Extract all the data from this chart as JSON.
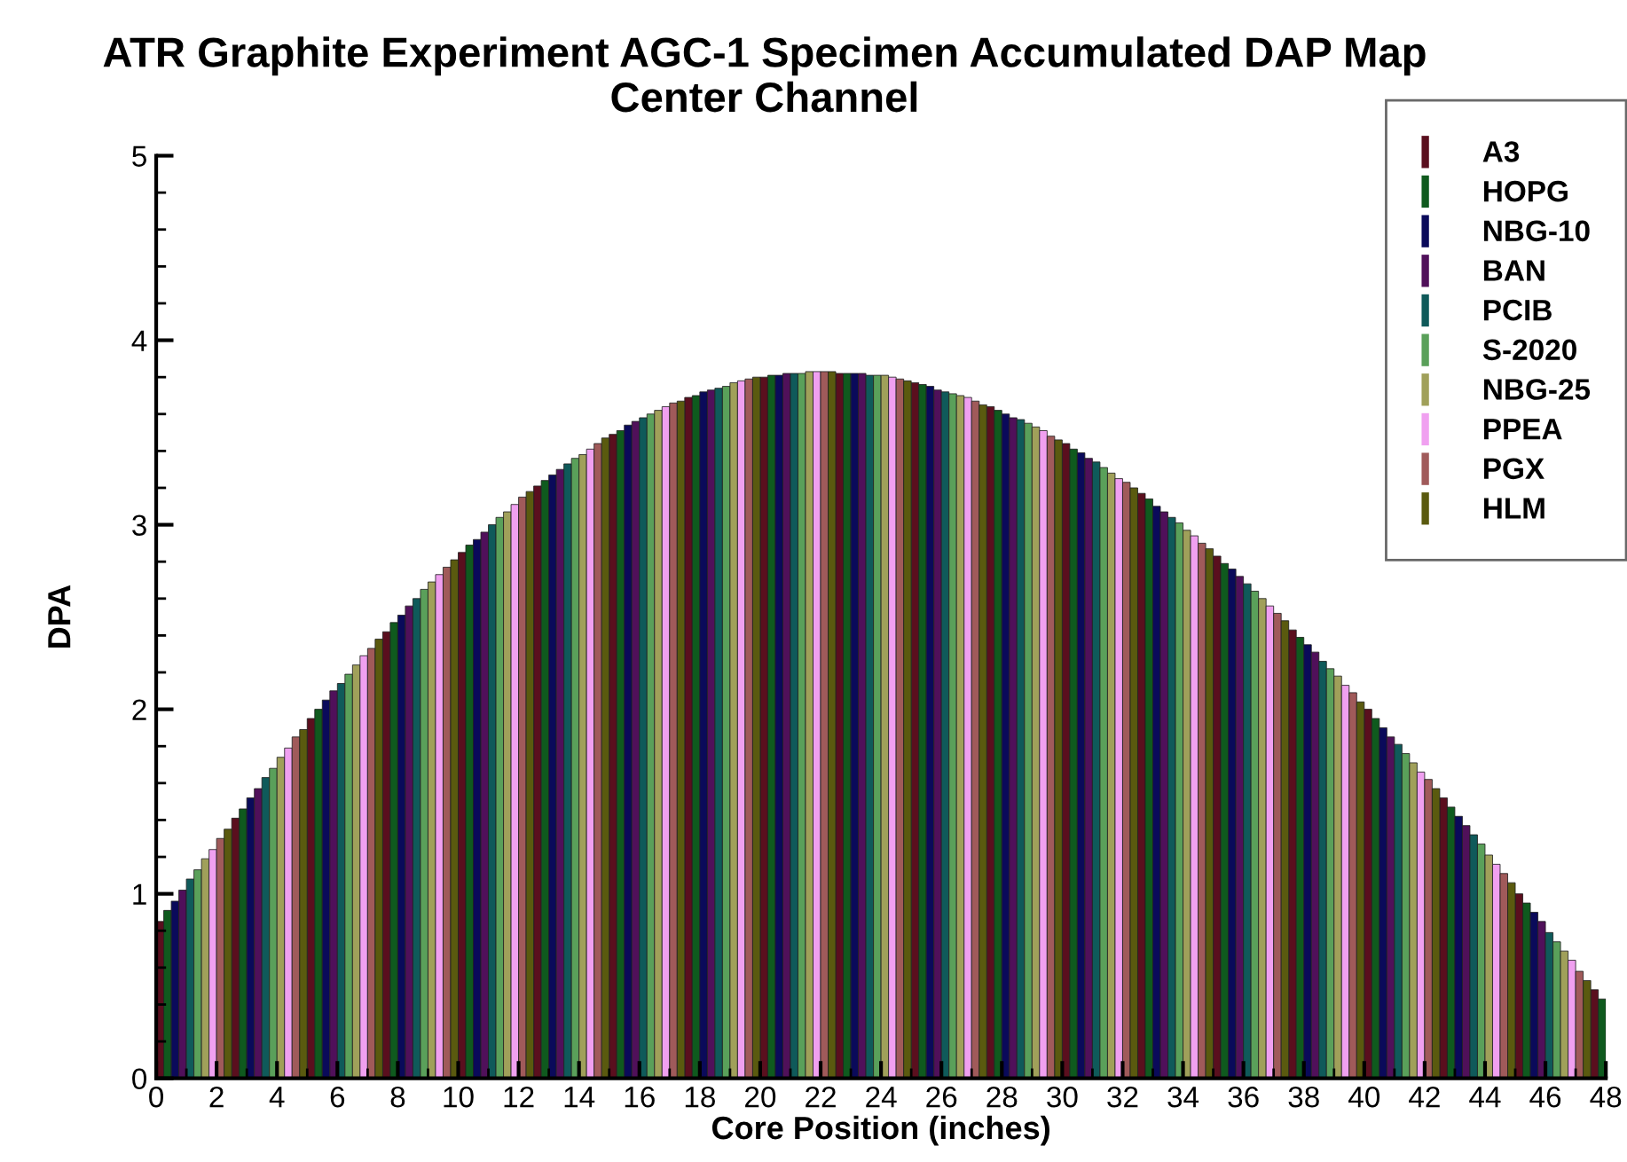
{
  "chart_data": {
    "type": "bar",
    "title": "ATR Graphite Experiment AGC-1 Specimen Accumulated DAP Map",
    "subtitle": "Center Channel",
    "xlabel": "Core Position (inches)",
    "ylabel": "DPA",
    "xlim": [
      0,
      48
    ],
    "xticks": [
      0,
      2,
      4,
      6,
      8,
      10,
      12,
      14,
      16,
      18,
      20,
      22,
      24,
      26,
      28,
      30,
      32,
      34,
      36,
      38,
      40,
      42,
      44,
      46,
      48
    ],
    "ylim": [
      0,
      5
    ],
    "yticks": [
      0,
      1,
      2,
      3,
      4,
      5
    ],
    "grid": false,
    "legend": "top right",
    "series": [
      {
        "name": "A3",
        "color": "#5a0f1e",
        "x": [
          0.125,
          2.625,
          5.125,
          7.625,
          10.125,
          12.625,
          15.125,
          17.625,
          20.125,
          22.625,
          25.125,
          27.625,
          30.125,
          32.625,
          35.125,
          37.625,
          40.125,
          42.625,
          45.125,
          47.625
        ],
        "values": [
          0.85,
          1.41,
          1.95,
          2.42,
          2.85,
          3.21,
          3.49,
          3.69,
          3.8,
          3.82,
          3.77,
          3.64,
          3.44,
          3.17,
          2.83,
          2.43,
          2.0,
          1.52,
          1.0,
          0.48
        ]
      },
      {
        "name": "HOPG",
        "color": "#0f5a1e",
        "x": [
          0.375,
          2.875,
          5.375,
          7.875,
          10.375,
          12.875,
          15.375,
          17.875,
          20.375,
          22.875,
          25.375,
          27.875,
          30.375,
          32.875,
          35.375,
          37.875,
          40.375,
          42.875,
          45.375,
          47.875
        ],
        "values": [
          0.91,
          1.46,
          2.0,
          2.47,
          2.89,
          3.24,
          3.51,
          3.7,
          3.81,
          3.82,
          3.76,
          3.62,
          3.41,
          3.14,
          2.79,
          2.39,
          1.95,
          1.47,
          0.95,
          0.43
        ]
      },
      {
        "name": "NBG-10",
        "color": "#0a0a5a",
        "x": [
          0.625,
          3.125,
          5.625,
          8.125,
          10.625,
          13.125,
          15.625,
          18.125,
          20.625,
          23.125,
          25.625,
          28.125,
          30.625,
          33.125,
          35.625,
          38.125,
          40.625,
          43.125,
          45.625
        ],
        "values": [
          0.96,
          1.52,
          2.05,
          2.51,
          2.92,
          3.27,
          3.54,
          3.72,
          3.81,
          3.82,
          3.75,
          3.6,
          3.39,
          3.1,
          2.76,
          2.35,
          1.9,
          1.42,
          0.9
        ]
      },
      {
        "name": "BAN",
        "color": "#50105a",
        "x": [
          0.875,
          3.375,
          5.875,
          8.375,
          10.875,
          13.375,
          15.875,
          18.375,
          20.875,
          23.375,
          25.875,
          28.375,
          30.875,
          33.375,
          35.875,
          38.375,
          40.875,
          43.375,
          45.875
        ],
        "values": [
          1.02,
          1.57,
          2.1,
          2.56,
          2.96,
          3.3,
          3.56,
          3.73,
          3.82,
          3.82,
          3.73,
          3.58,
          3.36,
          3.07,
          2.72,
          2.31,
          1.85,
          1.37,
          0.85
        ]
      },
      {
        "name": "PCIB",
        "color": "#0f5a5a",
        "x": [
          1.125,
          3.625,
          6.125,
          8.625,
          11.125,
          13.625,
          16.125,
          18.625,
          21.125,
          23.625,
          26.125,
          28.625,
          31.125,
          33.625,
          36.125,
          38.625,
          41.125,
          43.625,
          46.125
        ],
        "values": [
          1.08,
          1.63,
          2.14,
          2.6,
          3.0,
          3.33,
          3.58,
          3.74,
          3.82,
          3.81,
          3.72,
          3.57,
          3.34,
          3.04,
          2.68,
          2.26,
          1.81,
          1.32,
          0.79
        ]
      },
      {
        "name": "S-2020",
        "color": "#5aa05a",
        "x": [
          1.375,
          3.875,
          6.375,
          8.875,
          11.375,
          13.875,
          16.375,
          18.875,
          21.375,
          23.875,
          26.375,
          28.875,
          31.375,
          33.875,
          36.375,
          38.875,
          41.375,
          43.875,
          46.375
        ],
        "values": [
          1.13,
          1.68,
          2.19,
          2.65,
          3.04,
          3.36,
          3.6,
          3.75,
          3.82,
          3.81,
          3.71,
          3.55,
          3.31,
          3.01,
          2.64,
          2.22,
          1.76,
          1.27,
          0.74
        ]
      },
      {
        "name": "NBG-25",
        "color": "#a0a05a",
        "x": [
          1.625,
          4.125,
          6.625,
          9.125,
          11.625,
          14.125,
          16.625,
          19.125,
          21.625,
          24.125,
          26.625,
          29.125,
          31.625,
          34.125,
          36.625,
          39.125,
          41.625,
          44.125,
          46.625
        ],
        "values": [
          1.19,
          1.74,
          2.24,
          2.69,
          3.07,
          3.38,
          3.62,
          3.77,
          3.83,
          3.81,
          3.7,
          3.53,
          3.28,
          2.97,
          2.6,
          2.18,
          1.71,
          1.21,
          0.69
        ]
      },
      {
        "name": "PPEA",
        "color": "#f0a0f0",
        "x": [
          1.875,
          4.375,
          6.875,
          9.375,
          11.875,
          14.375,
          16.875,
          19.375,
          21.875,
          24.375,
          26.875,
          29.375,
          31.875,
          34.375,
          36.875,
          39.375,
          41.875,
          44.375,
          46.875
        ],
        "values": [
          1.24,
          1.79,
          2.29,
          2.73,
          3.11,
          3.41,
          3.64,
          3.78,
          3.83,
          3.8,
          3.69,
          3.51,
          3.25,
          2.94,
          2.56,
          2.13,
          1.66,
          1.16,
          0.64
        ]
      },
      {
        "name": "PGX",
        "color": "#a05a5a",
        "x": [
          2.125,
          4.625,
          7.125,
          9.625,
          12.125,
          14.625,
          17.125,
          19.625,
          22.125,
          24.625,
          27.125,
          29.625,
          32.125,
          34.625,
          37.125,
          39.625,
          42.125,
          44.625,
          47.125
        ],
        "values": [
          1.3,
          1.85,
          2.33,
          2.77,
          3.15,
          3.44,
          3.66,
          3.79,
          3.83,
          3.79,
          3.67,
          3.48,
          3.23,
          2.9,
          2.52,
          2.09,
          1.62,
          1.11,
          0.58
        ]
      },
      {
        "name": "HLM",
        "color": "#5a5a0f",
        "x": [
          2.375,
          4.875,
          7.375,
          9.875,
          12.375,
          14.875,
          17.375,
          19.875,
          22.375,
          24.875,
          27.375,
          29.875,
          32.375,
          34.875,
          37.375,
          39.875,
          42.375,
          44.875,
          47.375
        ],
        "values": [
          1.35,
          1.89,
          2.38,
          2.81,
          3.18,
          3.47,
          3.67,
          3.8,
          3.83,
          3.78,
          3.65,
          3.46,
          3.2,
          2.87,
          2.48,
          2.04,
          1.57,
          1.06,
          0.53
        ]
      }
    ]
  }
}
